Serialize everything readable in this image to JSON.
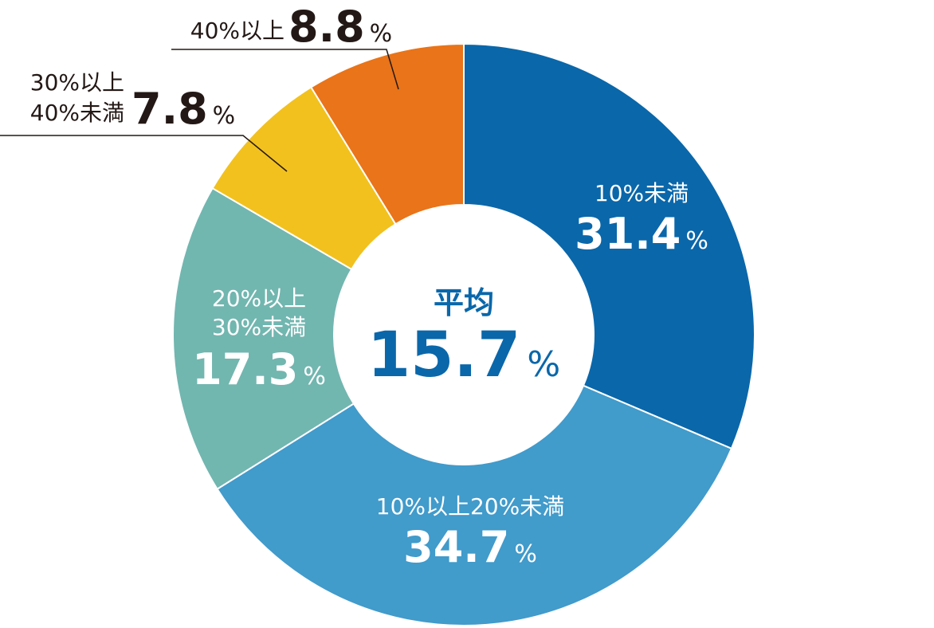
{
  "chart_data": {
    "type": "donut",
    "categories": [
      [
        "10%未満"
      ],
      [
        "10%以上20%未満"
      ],
      [
        "20%以上",
        "30%未満"
      ],
      [
        "30%以上",
        "40%未満"
      ],
      [
        "40%以上"
      ]
    ],
    "values": [
      31.4,
      34.7,
      17.3,
      7.8,
      8.8
    ],
    "unit": "%",
    "colors": [
      "#0a67aa",
      "#419bcb",
      "#72b6b0",
      "#f2c11d",
      "#e97419"
    ],
    "center_label": "平均",
    "center_value": 15.7
  }
}
